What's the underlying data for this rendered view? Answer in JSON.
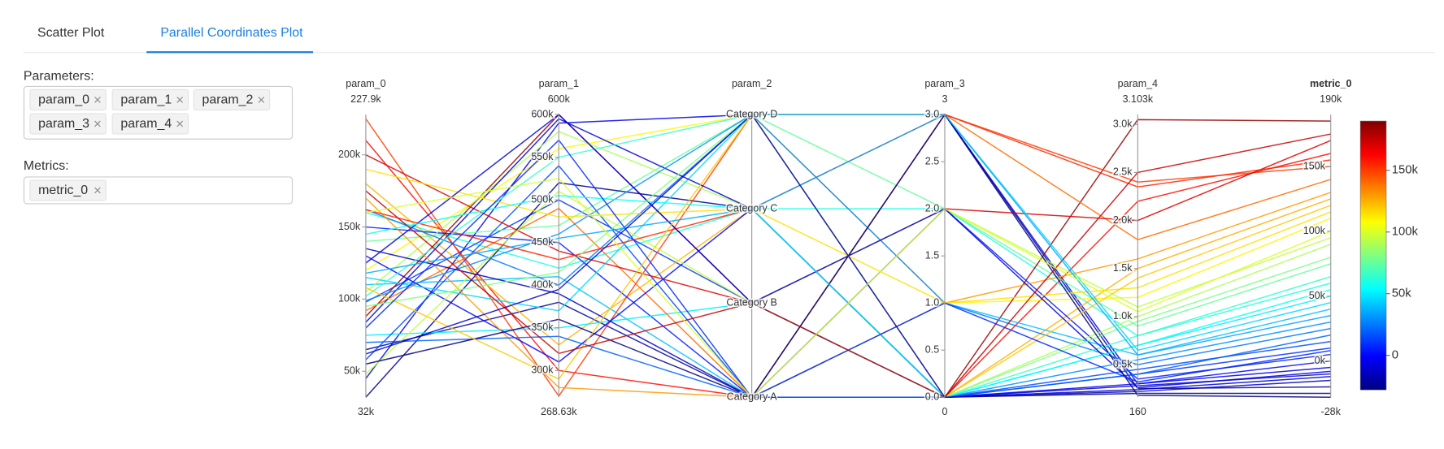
{
  "ui": {
    "tabs": [
      "Scatter Plot",
      "Parallel Coordinates Plot"
    ],
    "parameters": {
      "label": "Parameters:",
      "chips": [
        "param_0",
        "param_1",
        "param_2",
        "param_3",
        "param_4"
      ]
    },
    "metrics": {
      "label": "Metrics:",
      "chips": [
        "metric_0"
      ]
    }
  },
  "chart_data": {
    "type": "parallel_coordinates",
    "color_by": 5,
    "colorscale": [
      "#000080",
      "#0000ff",
      "#0080ff",
      "#00ffff",
      "#80ff80",
      "#ffff00",
      "#ff8000",
      "#ff0000",
      "#800000"
    ],
    "colorbar": {
      "range": [
        -28000,
        190000
      ],
      "ticks": [
        0,
        {
          "value": 50000,
          "label": "50k"
        },
        {
          "value": 100000,
          "label": "100k"
        },
        {
          "value": 150000,
          "label": "150k"
        }
      ]
    },
    "dimensions": [
      {
        "label": "param_0",
        "range": [
          {
            "value": 32000,
            "label": "32k"
          },
          {
            "value": 227900,
            "label": "227.9k"
          }
        ],
        "ticks": [
          {
            "value": 50000,
            "label": "50k"
          },
          {
            "value": 100000,
            "label": "100k"
          },
          {
            "value": 150000,
            "label": "150k"
          },
          {
            "value": 200000,
            "label": "200k"
          }
        ],
        "values": [
          45000,
          210000,
          160000,
          98000,
          120000,
          65000,
          180000,
          140000,
          88000,
          110000,
          32000,
          225000,
          150000,
          75000,
          105000,
          162000,
          92000,
          130000,
          58000,
          200000,
          115000,
          84000,
          170000,
          99000,
          48000,
          135000,
          162000,
          102000,
          70000,
          190000,
          125000,
          95000,
          55000,
          145000,
          108000,
          80000,
          175000,
          118000,
          62000,
          160000
        ]
      },
      {
        "label": "param_1",
        "range": [
          {
            "value": 268630,
            "label": "268.63k"
          },
          {
            "value": 600000,
            "label": "600k"
          }
        ],
        "ticks": [
          {
            "value": 300000,
            "label": "300k"
          },
          {
            "value": 350000,
            "label": "350k"
          },
          {
            "value": 400000,
            "label": "400k"
          },
          {
            "value": 450000,
            "label": "450k"
          },
          {
            "value": 500000,
            "label": "500k"
          },
          {
            "value": 550000,
            "label": "550k"
          },
          {
            "value": 600000,
            "label": "600k"
          }
        ],
        "values": [
          590000,
          300000,
          420000,
          500000,
          560000,
          380000,
          330000,
          470000,
          600000,
          410000,
          520000,
          270000,
          450000,
          350000,
          580000,
          400000,
          490000,
          310000,
          540000,
          440000,
          370000,
          595000,
          280000,
          460000,
          510000,
          390000,
          430000,
          550000,
          340000,
          480000,
          600000,
          415000,
          360000,
          505000,
          290000,
          570000,
          320000,
          455000,
          395000,
          525000
        ]
      },
      {
        "label": "param_2",
        "categories": [
          "Category A",
          "Category B",
          "Category C",
          "Category D"
        ],
        "values": [
          3,
          0,
          2,
          1,
          3,
          0,
          2,
          3,
          1,
          0,
          2,
          3,
          0,
          1,
          2,
          3,
          0,
          2,
          0,
          1,
          3,
          2,
          0,
          3,
          1,
          0,
          2,
          3,
          0,
          2,
          1,
          3,
          0,
          2,
          3,
          0,
          1,
          2,
          3,
          0
        ]
      },
      {
        "label": "param_3",
        "range": [
          0,
          3
        ],
        "ticks": [
          {
            "value": 0,
            "label": "0.0"
          },
          0.5,
          {
            "value": 1,
            "label": "1.0"
          },
          1.5,
          {
            "value": 2,
            "label": "2.0"
          },
          2.5,
          {
            "value": 3,
            "label": "3.0"
          }
        ],
        "values": [
          3,
          0,
          2,
          0,
          1,
          3,
          0,
          2,
          0,
          1,
          0,
          3,
          2,
          0,
          0,
          1,
          3,
          0,
          0,
          2,
          3,
          0,
          1,
          0,
          2,
          0,
          3,
          0,
          0,
          1,
          2,
          0,
          3,
          0,
          0,
          1,
          0,
          3,
          0,
          2
        ]
      },
      {
        "label": "param_4",
        "range": [
          160,
          {
            "value": 3103,
            "label": "3.103k"
          }
        ],
        "ticks": [
          {
            "value": 500,
            "label": "0.5k"
          },
          {
            "value": 1000,
            "label": "1.0k"
          },
          {
            "value": 1500,
            "label": "1.5k"
          },
          {
            "value": 2000,
            "label": "2.0k"
          },
          {
            "value": 2500,
            "label": "2.5k"
          },
          {
            "value": 3000,
            "label": "3.0k"
          }
        ],
        "values": [
          300,
          2200,
          800,
          400,
          1200,
          250,
          1500,
          900,
          3050,
          600,
          200,
          2400,
          350,
          700,
          1000,
          500,
          1800,
          300,
          450,
          2000,
          650,
          280,
          1600,
          550,
          1100,
          220,
          2350,
          800,
          400,
          1300,
          260,
          950,
          180,
          700,
          1400,
          320,
          2500,
          600,
          240,
          1050
        ]
      },
      {
        "label": "metric_0",
        "highlight": "#1a8a1a",
        "range": [
          {
            "value": -28000,
            "label": "-28k"
          },
          {
            "value": 190000,
            "label": "190k"
          }
        ],
        "ticks": [
          {
            "value": 0,
            "label": "0k"
          },
          {
            "value": 50000,
            "label": "50k"
          },
          {
            "value": 100000,
            "label": "100k"
          },
          {
            "value": 150000,
            "label": "150k"
          }
        ],
        "values": [
          -5000,
          160000,
          60000,
          10000,
          110000,
          -20000,
          125000,
          75000,
          185000,
          40000,
          -25000,
          150000,
          5000,
          50000,
          90000,
          25000,
          140000,
          0,
          15000,
          170000,
          45000,
          -10000,
          130000,
          30000,
          95000,
          -15000,
          155000,
          65000,
          20000,
          115000,
          -8000,
          80000,
          -28000,
          55000,
          120000,
          8000,
          175000,
          35000,
          -12000,
          100000
        ]
      }
    ]
  }
}
